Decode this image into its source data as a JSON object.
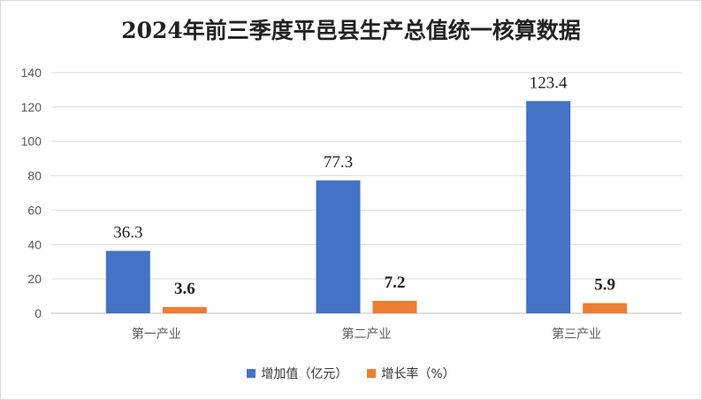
{
  "chart_data": {
    "type": "bar",
    "title": "2024年前三季度平邑县生产总值统一核算数据",
    "categories": [
      "第一产业",
      "第二产业",
      "第三产业"
    ],
    "series": [
      {
        "name": "增加值（亿元）",
        "values": [
          36.3,
          77.3,
          123.4
        ],
        "color": "#4472c4",
        "label_style": "normal"
      },
      {
        "name": "增长率（%）",
        "values": [
          3.6,
          7.2,
          5.9
        ],
        "color": "#ed7d31",
        "label_style": "bold"
      }
    ],
    "yticks": [
      "0",
      "20",
      "40",
      "60",
      "80",
      "100",
      "120",
      "140"
    ],
    "ylim": [
      0,
      140
    ],
    "grid": true,
    "legend_position": "bottom"
  }
}
